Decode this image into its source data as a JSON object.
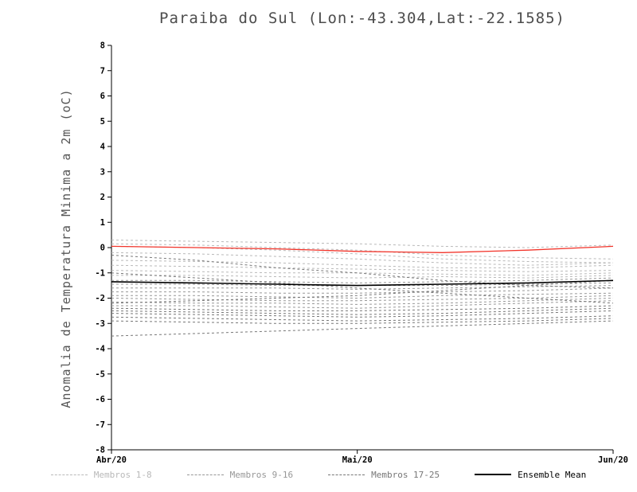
{
  "figure": {
    "title": "Paraiba do Sul (Lon:-43.304,Lat:-22.1585)",
    "y_axis_label": "Anomalia de Temperatura Minima a 2m (oC)"
  },
  "chart_data": {
    "type": "line",
    "title": "Paraiba do Sul (Lon:-43.304,Lat:-22.1585)",
    "xlabel": "",
    "ylabel": "Anomalia de Temperatura Minima a 2m (oC)",
    "ylim": [
      -8,
      8
    ],
    "ytick_step": 1,
    "grid": false,
    "legend_position": "bottom",
    "x_ticks": [
      "Abr/20",
      "Mai/20",
      "Jun/20"
    ],
    "x_tick_pos": [
      0,
      0.49,
      1
    ],
    "x": [
      0,
      0.17,
      0.33,
      0.49,
      0.66,
      0.83,
      1
    ],
    "legend": [
      {
        "label": "Membros 1-8",
        "color": "#b9b9b9",
        "dash": true
      },
      {
        "label": "Membros 9-16",
        "color": "#979797",
        "dash": true
      },
      {
        "label": "Membros 17-25",
        "color": "#777777",
        "dash": true
      },
      {
        "label": "Ensemble Mean",
        "color": "#000000",
        "dash": false
      }
    ],
    "series": [
      {
        "name": "Membro 1",
        "group": "Membros 1-8",
        "color": "#b9b9b9",
        "dash": true,
        "width": 1,
        "values": [
          0.3,
          0.25,
          0.2,
          0.15,
          0.05,
          0.0,
          0.1
        ]
      },
      {
        "name": "Membro 2",
        "group": "Membros 1-8",
        "color": "#b9b9b9",
        "dash": true,
        "width": 1,
        "values": [
          0.15,
          0.1,
          0.0,
          -0.1,
          -0.3,
          -0.4,
          -0.45
        ]
      },
      {
        "name": "Membro 3",
        "group": "Membros 1-8",
        "color": "#b9b9b9",
        "dash": true,
        "width": 1,
        "values": [
          0.05,
          0.0,
          -0.1,
          -0.25,
          -0.45,
          -0.55,
          -0.6
        ]
      },
      {
        "name": "Membro 4",
        "group": "Membros 1-8",
        "color": "#b9b9b9",
        "dash": true,
        "width": 1,
        "values": [
          -0.2,
          -0.25,
          -0.35,
          -0.45,
          -0.6,
          -0.7,
          -0.6
        ]
      },
      {
        "name": "Membro 5",
        "group": "Membros 1-8",
        "color": "#b9b9b9",
        "dash": true,
        "width": 1,
        "values": [
          -0.5,
          -0.55,
          -0.6,
          -0.7,
          -0.8,
          -0.8,
          -0.7
        ]
      },
      {
        "name": "Membro 6",
        "group": "Membros 1-8",
        "color": "#b9b9b9",
        "dash": true,
        "width": 1,
        "values": [
          -0.7,
          -0.75,
          -0.8,
          -0.85,
          -0.9,
          -0.95,
          -0.9
        ]
      },
      {
        "name": "Membro 7",
        "group": "Membros 1-8",
        "color": "#b9b9b9",
        "dash": true,
        "width": 1,
        "values": [
          -0.9,
          -0.95,
          -1.0,
          -1.0,
          -1.05,
          -1.1,
          -1.0
        ]
      },
      {
        "name": "Membro 8",
        "group": "Membros 1-8",
        "color": "#b9b9b9",
        "dash": true,
        "width": 1,
        "values": [
          -1.1,
          -1.1,
          -1.15,
          -1.2,
          -1.15,
          -1.2,
          -1.1
        ]
      },
      {
        "name": "Membro 9",
        "group": "Membros 9-16",
        "color": "#979797",
        "dash": true,
        "width": 1,
        "values": [
          -1.3,
          -1.3,
          -1.35,
          -1.4,
          -1.35,
          -1.3,
          -1.2
        ]
      },
      {
        "name": "Membro 10",
        "group": "Membros 9-16",
        "color": "#979797",
        "dash": true,
        "width": 1,
        "values": [
          -1.45,
          -1.45,
          -1.5,
          -1.5,
          -1.5,
          -1.45,
          -1.4
        ]
      },
      {
        "name": "Membro 11",
        "group": "Membros 9-16",
        "color": "#979797",
        "dash": true,
        "width": 1,
        "values": [
          -1.6,
          -1.6,
          -1.6,
          -1.65,
          -1.6,
          -1.55,
          -1.5
        ]
      },
      {
        "name": "Membro 12",
        "group": "Membros 9-16",
        "color": "#979797",
        "dash": true,
        "width": 1,
        "values": [
          -1.75,
          -1.75,
          -1.8,
          -1.8,
          -1.75,
          -1.7,
          -1.6
        ]
      },
      {
        "name": "Membro 13",
        "group": "Membros 9-16",
        "color": "#979797",
        "dash": true,
        "width": 1,
        "values": [
          -1.9,
          -1.9,
          -1.95,
          -2.0,
          -1.9,
          -1.85,
          -1.8
        ]
      },
      {
        "name": "Membro 14",
        "group": "Membros 9-16",
        "color": "#979797",
        "dash": true,
        "width": 1,
        "values": [
          -2.0,
          -2.05,
          -2.1,
          -2.1,
          -2.05,
          -2.0,
          -1.9
        ]
      },
      {
        "name": "Membro 15",
        "group": "Membros 9-16",
        "color": "#979797",
        "dash": true,
        "width": 1,
        "values": [
          -2.15,
          -2.2,
          -2.2,
          -2.25,
          -2.2,
          -2.1,
          -2.0
        ]
      },
      {
        "name": "Membro 16",
        "group": "Membros 9-16",
        "color": "#979797",
        "dash": true,
        "width": 1,
        "values": [
          -2.3,
          -2.3,
          -2.35,
          -2.4,
          -2.3,
          -2.2,
          -2.1
        ]
      },
      {
        "name": "Membro 17",
        "group": "Membros 17-25",
        "color": "#777777",
        "dash": true,
        "width": 1,
        "values": [
          -2.4,
          -2.45,
          -2.5,
          -2.5,
          -2.45,
          -2.4,
          -2.3
        ]
      },
      {
        "name": "Membro 18",
        "group": "Membros 17-25",
        "color": "#777777",
        "dash": true,
        "width": 1,
        "values": [
          -2.5,
          -2.55,
          -2.6,
          -2.65,
          -2.6,
          -2.5,
          -2.4
        ]
      },
      {
        "name": "Membro 19",
        "group": "Membros 17-25",
        "color": "#777777",
        "dash": true,
        "width": 1,
        "values": [
          -2.6,
          -2.65,
          -2.7,
          -2.75,
          -2.7,
          -2.6,
          -2.5
        ]
      },
      {
        "name": "Membro 20",
        "group": "Membros 17-25",
        "color": "#777777",
        "dash": true,
        "width": 1,
        "values": [
          -2.75,
          -2.8,
          -2.85,
          -2.9,
          -2.85,
          -2.8,
          -2.7
        ]
      },
      {
        "name": "Membro 21",
        "group": "Membros 17-25",
        "color": "#777777",
        "dash": true,
        "width": 1,
        "values": [
          -2.9,
          -2.95,
          -3.0,
          -3.0,
          -2.95,
          -2.9,
          -2.8
        ]
      },
      {
        "name": "Membro 22",
        "group": "Membros 17-25",
        "color": "#777777",
        "dash": true,
        "width": 1,
        "values": [
          -3.5,
          -3.4,
          -3.3,
          -3.2,
          -3.1,
          -3.0,
          -2.9
        ]
      },
      {
        "name": "Membro 23",
        "group": "Membros 17-25",
        "color": "#777777",
        "dash": true,
        "width": 1,
        "values": [
          -2.2,
          -2.1,
          -2.0,
          -1.9,
          -1.7,
          -1.5,
          -1.3
        ]
      },
      {
        "name": "Membro 24",
        "group": "Membros 17-25",
        "color": "#777777",
        "dash": true,
        "width": 1,
        "values": [
          -0.3,
          -0.5,
          -0.8,
          -1.0,
          -1.3,
          -1.5,
          -1.6
        ]
      },
      {
        "name": "Membro 25",
        "group": "Membros 17-25",
        "color": "#777777",
        "dash": true,
        "width": 1,
        "values": [
          -1.0,
          -1.2,
          -1.4,
          -1.6,
          -1.8,
          -2.0,
          -2.2
        ]
      },
      {
        "name": "Ensemble Mean",
        "group": "Ensemble Mean",
        "color": "#000000",
        "dash": false,
        "width": 1.6,
        "values": [
          -1.35,
          -1.4,
          -1.45,
          -1.5,
          -1.45,
          -1.4,
          -1.3
        ]
      },
      {
        "name": "Linha vermelha (nao legendada)",
        "group": "red-line",
        "color": "#f2352b",
        "dash": false,
        "width": 1.3,
        "values": [
          0.05,
          0.0,
          -0.05,
          -0.15,
          -0.2,
          -0.1,
          0.05
        ]
      }
    ]
  }
}
